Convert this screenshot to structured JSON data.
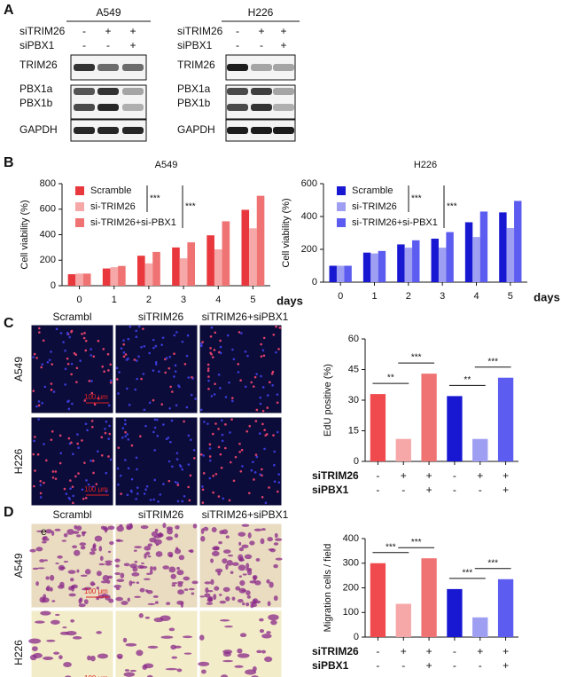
{
  "panels": [
    "A",
    "B",
    "C",
    "D"
  ],
  "blots": [
    {
      "cell_line": "A549",
      "rows": [
        {
          "label": "siTRIM26",
          "signs": [
            "-",
            "+",
            "+"
          ]
        },
        {
          "label": "siPBX1",
          "signs": [
            "-",
            "-",
            "+"
          ]
        }
      ],
      "bands": [
        "TRIM26",
        "PBX1a",
        "PBX1b",
        "GAPDH"
      ]
    },
    {
      "cell_line": "H226",
      "rows": [
        {
          "label": "siTRIM26",
          "signs": [
            "-",
            "+",
            "+"
          ]
        },
        {
          "label": "siPBX1",
          "signs": [
            "-",
            "-",
            "+"
          ]
        }
      ],
      "bands": [
        "TRIM26",
        "PBX1a",
        "PBX1b",
        "GAPDH"
      ]
    }
  ],
  "images": {
    "columns": [
      "Scrambl",
      "siTRIM26",
      "siTRIM26+siPBX1"
    ],
    "C": {
      "rows": [
        "A549",
        "H226"
      ],
      "scale": "100 μm"
    },
    "D": {
      "rows": [
        "A549",
        "H226"
      ],
      "scale": "100 μm",
      "mark": "e"
    }
  },
  "chart_data": [
    {
      "type": "bar",
      "title": "A549",
      "categories": [
        "0",
        "1",
        "2",
        "3",
        "4",
        "5"
      ],
      "x_label": "days",
      "y_label": "Cell viability (%)",
      "ylim": [
        0,
        800
      ],
      "yticks": [
        0,
        200,
        400,
        600,
        800
      ],
      "series": [
        {
          "name": "Scramble",
          "color": "#e8383d",
          "values": [
            90,
            135,
            235,
            300,
            395,
            595
          ]
        },
        {
          "name": "si-TRIM26",
          "color": "#f6a7a7",
          "values": [
            95,
            145,
            175,
            215,
            285,
            450
          ]
        },
        {
          "name": "si-TRIM26+si-PBX1",
          "color": "#f07373",
          "values": [
            95,
            155,
            265,
            340,
            505,
            705
          ]
        }
      ],
      "annotations": [
        "***",
        "***"
      ]
    },
    {
      "type": "bar",
      "title": "H226",
      "categories": [
        "0",
        "1",
        "2",
        "3",
        "4",
        "5"
      ],
      "x_label": "days",
      "y_label": "Cell viability (%)",
      "ylim": [
        0,
        600
      ],
      "yticks": [
        0,
        200,
        400,
        600
      ],
      "series": [
        {
          "name": "Scramble",
          "color": "#1818d2",
          "values": [
            100,
            180,
            230,
            265,
            365,
            425
          ]
        },
        {
          "name": "si-TRIM26",
          "color": "#9e9ef2",
          "values": [
            100,
            175,
            210,
            210,
            275,
            330
          ]
        },
        {
          "name": "si-TRIM26+si-PBX1",
          "color": "#5c5cf0",
          "values": [
            100,
            190,
            255,
            305,
            430,
            495
          ]
        }
      ],
      "annotations": [
        "***",
        "***"
      ]
    },
    {
      "type": "bar",
      "y_label": "EdU positive (%)",
      "categories": [
        null,
        null,
        null,
        null,
        null,
        null
      ],
      "values": [
        33,
        11,
        43,
        32,
        11,
        41
      ],
      "colors": [
        "#f04a4e",
        "#f6a7a7",
        "#f07373",
        "#1818d2",
        "#9e9ef2",
        "#5c5cf0"
      ],
      "ylim": [
        0,
        60
      ],
      "yticks": [
        0,
        15,
        30,
        45,
        60
      ],
      "annotations": [
        "**",
        "***",
        "**",
        "***"
      ],
      "conditions": [
        {
          "label": "siTRIM26",
          "signs": [
            "-",
            "+",
            "+",
            "-",
            "+",
            "+"
          ]
        },
        {
          "label": "siPBX1",
          "signs": [
            "-",
            "-",
            "+",
            "-",
            "-",
            "+"
          ]
        }
      ]
    },
    {
      "type": "bar",
      "y_label": "Migration cells / field",
      "categories": [
        null,
        null,
        null,
        null,
        null,
        null
      ],
      "values": [
        300,
        135,
        320,
        195,
        80,
        235
      ],
      "colors": [
        "#f04a4e",
        "#f6a7a7",
        "#f07373",
        "#1818d2",
        "#9e9ef2",
        "#5c5cf0"
      ],
      "ylim": [
        0,
        400
      ],
      "yticks": [
        0,
        100,
        200,
        300,
        400
      ],
      "annotations": [
        "***",
        "***",
        "***",
        "***"
      ],
      "conditions": [
        {
          "label": "siTRIM26",
          "signs": [
            "-",
            "+",
            "+",
            "-",
            "+",
            "+"
          ]
        },
        {
          "label": "siPBX1",
          "signs": [
            "-",
            "-",
            "+",
            "-",
            "-",
            "+"
          ]
        }
      ]
    }
  ]
}
